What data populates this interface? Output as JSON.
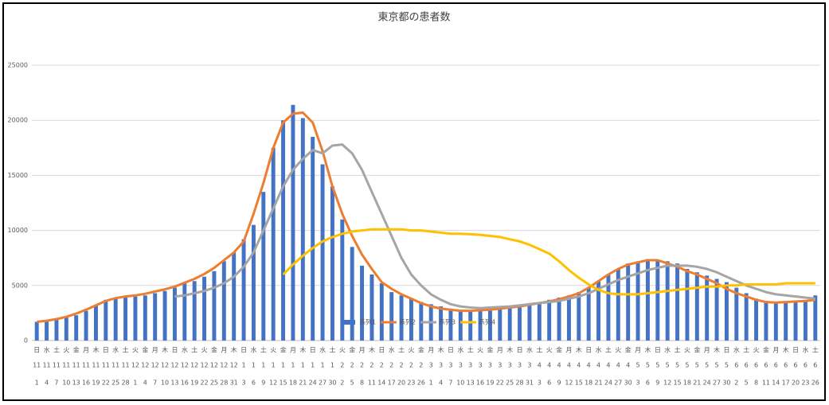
{
  "chart_data": {
    "type": "combo",
    "title": "東京都の患者数",
    "ylim": [
      0,
      25000
    ],
    "yticks": [
      0,
      5000,
      10000,
      15000,
      20000,
      25000
    ],
    "grid": true,
    "legend": "bottom",
    "categories": [
      1,
      4,
      7,
      10,
      13,
      16,
      19,
      22,
      25,
      28,
      1,
      4,
      7,
      10,
      13,
      16,
      19,
      22,
      25,
      28,
      31,
      3,
      6,
      9,
      12,
      15,
      18,
      21,
      24,
      27,
      30,
      2,
      5,
      8,
      11,
      14,
      17,
      20,
      23,
      26,
      1,
      4,
      7,
      10,
      13,
      16,
      19,
      22,
      25,
      28,
      31,
      3,
      6,
      9,
      12,
      15,
      18,
      21,
      24,
      27,
      30,
      3,
      6,
      9,
      12,
      15,
      18,
      21,
      24,
      27,
      30,
      2,
      5,
      8,
      11,
      14,
      17,
      20,
      23,
      26
    ],
    "category_months": [
      11,
      11,
      11,
      11,
      11,
      11,
      11,
      11,
      11,
      11,
      12,
      12,
      12,
      12,
      12,
      12,
      12,
      12,
      12,
      12,
      12,
      1,
      1,
      1,
      1,
      1,
      1,
      1,
      1,
      1,
      1,
      2,
      2,
      2,
      2,
      2,
      2,
      2,
      2,
      2,
      3,
      3,
      3,
      3,
      3,
      3,
      3,
      3,
      3,
      3,
      3,
      4,
      4,
      4,
      4,
      4,
      4,
      4,
      4,
      4,
      4,
      5,
      5,
      5,
      5,
      5,
      5,
      5,
      5,
      5,
      5,
      6,
      6,
      6,
      6,
      6,
      6,
      6,
      6,
      6
    ],
    "category_weekdays": [
      "日",
      "水",
      "土",
      "火",
      "金",
      "月",
      "木",
      "日",
      "水",
      "土",
      "火",
      "金",
      "月",
      "木",
      "日",
      "水",
      "土",
      "火",
      "金",
      "月",
      "木",
      "日",
      "水",
      "土",
      "火",
      "金",
      "月",
      "木",
      "日",
      "水",
      "土",
      "火",
      "金",
      "月",
      "木",
      "日",
      "水",
      "土",
      "火",
      "金",
      "月",
      "木",
      "日",
      "水",
      "土",
      "火",
      "金",
      "月",
      "木",
      "日",
      "水",
      "土",
      "火",
      "金",
      "月",
      "木",
      "日",
      "水",
      "土",
      "火",
      "金",
      "月",
      "木",
      "日",
      "水",
      "土",
      "火",
      "金",
      "月",
      "木",
      "日",
      "水",
      "土",
      "火",
      "金",
      "月",
      "木",
      "日",
      "水",
      "土"
    ],
    "series": [
      {
        "name": "系列1",
        "type": "bar",
        "color": "#4472c4",
        "values": [
          1700,
          1800,
          1900,
          2100,
          2300,
          2700,
          3200,
          3700,
          3800,
          3900,
          4000,
          4100,
          4300,
          4500,
          4800,
          5200,
          5400,
          5800,
          6300,
          7200,
          8000,
          9200,
          10500,
          13500,
          17500,
          20000,
          21400,
          20200,
          18500,
          16000,
          14000,
          11000,
          8500,
          6800,
          6000,
          5200,
          4400,
          4100,
          3800,
          3500,
          3300,
          3100,
          2900,
          2800,
          2700,
          2700,
          2800,
          2900,
          3000,
          3100,
          3300,
          3500,
          3700,
          3900,
          4100,
          4400,
          4800,
          5400,
          6000,
          6500,
          7000,
          7200,
          7400,
          7300,
          7200,
          7000,
          6500,
          6200,
          5900,
          5600,
          5300,
          4800,
          4300,
          3800,
          3600,
          3500,
          3500,
          3500,
          3600,
          4100
        ]
      },
      {
        "name": "系列2",
        "type": "line",
        "color": "#ed7d31",
        "values": [
          1700,
          1800,
          1950,
          2150,
          2450,
          2800,
          3200,
          3600,
          3850,
          4000,
          4100,
          4250,
          4450,
          4650,
          4900,
          5250,
          5600,
          6050,
          6600,
          7300,
          8000,
          9000,
          11500,
          14300,
          17500,
          19800,
          20600,
          20700,
          19800,
          17200,
          14000,
          11500,
          9500,
          7800,
          6500,
          5300,
          4700,
          4200,
          3800,
          3400,
          3100,
          2900,
          2800,
          2700,
          2700,
          2750,
          2800,
          2900,
          3000,
          3100,
          3250,
          3400,
          3550,
          3750,
          4000,
          4300,
          4800,
          5400,
          6000,
          6500,
          6900,
          7100,
          7300,
          7300,
          7000,
          6700,
          6300,
          6000,
          5600,
          5200,
          4700,
          4300,
          4000,
          3700,
          3500,
          3450,
          3500,
          3550,
          3600,
          3700
        ]
      },
      {
        "name": "系列3",
        "type": "line",
        "color": "#a5a5a5",
        "values": [
          null,
          null,
          null,
          null,
          null,
          null,
          null,
          null,
          null,
          null,
          null,
          null,
          null,
          null,
          4000,
          4100,
          4300,
          4500,
          4800,
          5200,
          5800,
          6700,
          8000,
          10000,
          12000,
          14000,
          15500,
          16500,
          17300,
          17000,
          17700,
          17800,
          17000,
          15500,
          13500,
          11500,
          9500,
          7500,
          6000,
          5000,
          4200,
          3700,
          3300,
          3100,
          3000,
          2950,
          3000,
          3050,
          3100,
          3200,
          3300,
          3400,
          3500,
          3600,
          3800,
          4000,
          4300,
          4700,
          5100,
          5500,
          5800,
          6100,
          6400,
          6600,
          6800,
          6800,
          6800,
          6700,
          6500,
          6200,
          5800,
          5400,
          5000,
          4700,
          4400,
          4200,
          4100,
          4000,
          3900,
          3800
        ]
      },
      {
        "name": "系列4",
        "type": "line",
        "color": "#ffc000",
        "values": [
          null,
          null,
          null,
          null,
          null,
          null,
          null,
          null,
          null,
          null,
          null,
          null,
          null,
          null,
          null,
          null,
          null,
          null,
          null,
          null,
          null,
          null,
          null,
          null,
          null,
          6000,
          6900,
          7700,
          8400,
          9000,
          9400,
          9700,
          9900,
          10000,
          10100,
          10100,
          10100,
          10100,
          10000,
          10000,
          9900,
          9800,
          9700,
          9700,
          9650,
          9600,
          9500,
          9400,
          9200,
          9000,
          8700,
          8300,
          7900,
          7200,
          6400,
          5700,
          5100,
          4600,
          4300,
          4200,
          4200,
          4200,
          4300,
          4400,
          4500,
          4600,
          4700,
          4800,
          4900,
          4900,
          5000,
          5000,
          5100,
          5100,
          5100,
          5100,
          5200,
          5200,
          5200,
          5200
        ]
      }
    ]
  }
}
